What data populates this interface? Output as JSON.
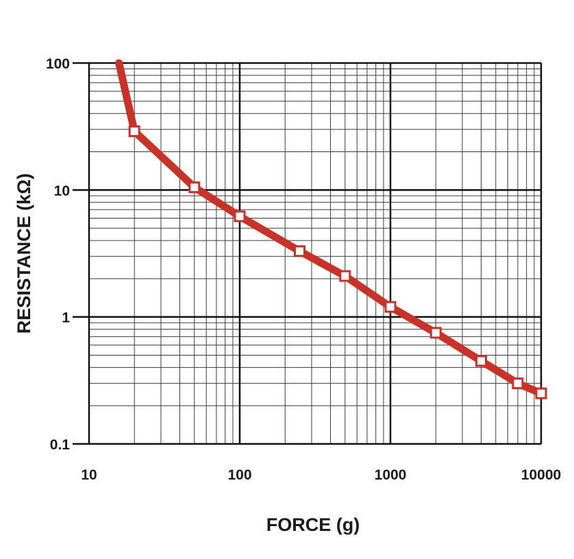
{
  "chart_data": {
    "type": "line",
    "title": "",
    "xlabel": "FORCE (g)",
    "ylabel": "RESISTANCE (kΩ)",
    "x_scale": "log",
    "y_scale": "log",
    "xlim": [
      10,
      10000
    ],
    "ylim": [
      0.1,
      100
    ],
    "x_ticks": [
      "10",
      "100",
      "1000",
      "10000"
    ],
    "y_ticks": [
      "0.1",
      "1",
      "10",
      "100"
    ],
    "grid": true,
    "series": [
      {
        "line_start": {
          "x": 15.8,
          "y": 100
        },
        "x": [
          20,
          50,
          100,
          250,
          500,
          1000,
          2000,
          4000,
          7000,
          10000
        ],
        "y": [
          29,
          10.5,
          6.2,
          3.3,
          2.1,
          1.2,
          0.75,
          0.45,
          0.3,
          0.25
        ],
        "color": "#c83228",
        "marker": "square"
      }
    ]
  }
}
